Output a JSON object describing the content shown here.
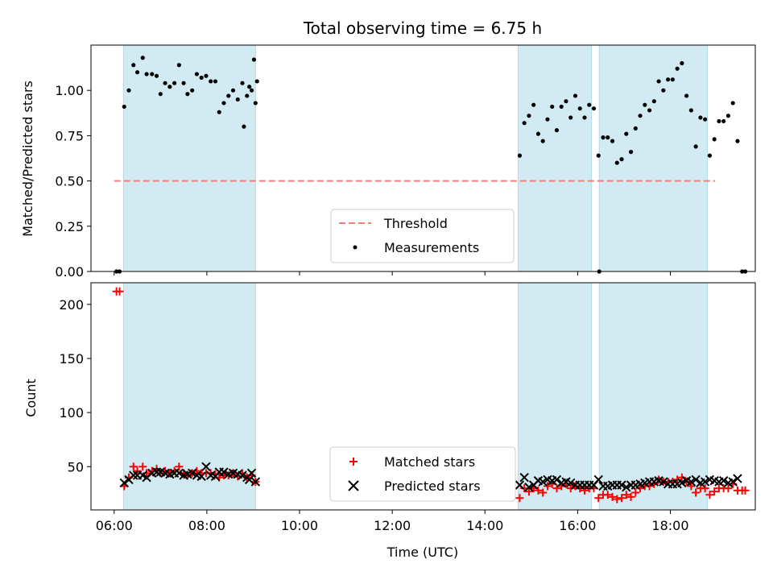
{
  "chart_data": [
    {
      "type": "scatter",
      "title": "Total observing time = 6.75 h",
      "ylabel": "Matched/Predicted stars",
      "xlabel": "",
      "xlim": [
        "05:30",
        "19:50"
      ],
      "ylim": [
        0,
        1.25
      ],
      "yticks": [
        "0.00",
        "0.25",
        "0.50",
        "0.75",
        "1.00"
      ],
      "shaded_intervals": [
        [
          "06:12",
          "09:03"
        ],
        [
          "14:43",
          "16:18"
        ],
        [
          "16:28",
          "18:48"
        ]
      ],
      "threshold": {
        "name": "Threshold",
        "value": 0.5,
        "x": [
          "06:00",
          "18:58"
        ],
        "color": "#f08080"
      },
      "series": [
        {
          "name": "Measurements",
          "color": "#000000",
          "points": [
            [
              "06:03",
              0.0
            ],
            [
              "06:07",
              0.0
            ],
            [
              "06:13",
              0.91
            ],
            [
              "06:19",
              1.0
            ],
            [
              "06:25",
              1.14
            ],
            [
              "06:30",
              1.1
            ],
            [
              "06:37",
              1.18
            ],
            [
              "06:42",
              1.09
            ],
            [
              "06:49",
              1.09
            ],
            [
              "06:55",
              1.08
            ],
            [
              "07:00",
              0.98
            ],
            [
              "07:06",
              1.04
            ],
            [
              "07:12",
              1.02
            ],
            [
              "07:18",
              1.04
            ],
            [
              "07:24",
              1.14
            ],
            [
              "07:30",
              1.04
            ],
            [
              "07:35",
              0.98
            ],
            [
              "07:41",
              1.0
            ],
            [
              "07:47",
              1.09
            ],
            [
              "07:53",
              1.07
            ],
            [
              "07:59",
              1.08
            ],
            [
              "08:05",
              1.05
            ],
            [
              "08:11",
              1.05
            ],
            [
              "08:16",
              0.88
            ],
            [
              "08:22",
              0.93
            ],
            [
              "08:28",
              0.97
            ],
            [
              "08:34",
              1.0
            ],
            [
              "08:40",
              0.95
            ],
            [
              "08:46",
              1.04
            ],
            [
              "08:52",
              0.97
            ],
            [
              "08:58",
              1.0
            ],
            [
              "09:03",
              0.93
            ],
            [
              "08:48",
              0.8
            ],
            [
              "08:55",
              1.02
            ],
            [
              "09:01",
              1.17
            ],
            [
              "09:05",
              1.05
            ],
            [
              "14:45",
              0.64
            ],
            [
              "14:51",
              0.82
            ],
            [
              "14:57",
              0.86
            ],
            [
              "15:03",
              0.92
            ],
            [
              "15:09",
              0.76
            ],
            [
              "15:15",
              0.72
            ],
            [
              "15:21",
              0.84
            ],
            [
              "15:27",
              0.91
            ],
            [
              "15:33",
              0.78
            ],
            [
              "15:39",
              0.91
            ],
            [
              "15:45",
              0.94
            ],
            [
              "15:51",
              0.85
            ],
            [
              "15:57",
              0.97
            ],
            [
              "16:03",
              0.9
            ],
            [
              "16:09",
              0.85
            ],
            [
              "16:15",
              0.92
            ],
            [
              "16:21",
              0.9
            ],
            [
              "16:27",
              0.64
            ],
            [
              "16:33",
              0.74
            ],
            [
              "16:39",
              0.74
            ],
            [
              "16:28",
              0.0
            ],
            [
              "16:45",
              0.72
            ],
            [
              "16:51",
              0.6
            ],
            [
              "16:57",
              0.62
            ],
            [
              "17:03",
              0.76
            ],
            [
              "17:09",
              0.66
            ],
            [
              "17:15",
              0.79
            ],
            [
              "17:21",
              0.86
            ],
            [
              "17:27",
              0.92
            ],
            [
              "17:33",
              0.89
            ],
            [
              "17:39",
              0.94
            ],
            [
              "17:45",
              1.05
            ],
            [
              "17:51",
              1.0
            ],
            [
              "17:57",
              1.06
            ],
            [
              "18:03",
              1.06
            ],
            [
              "18:09",
              1.12
            ],
            [
              "18:15",
              1.15
            ],
            [
              "18:21",
              0.97
            ],
            [
              "18:27",
              0.89
            ],
            [
              "18:33",
              0.69
            ],
            [
              "18:39",
              0.85
            ],
            [
              "18:45",
              0.84
            ],
            [
              "18:51",
              0.64
            ],
            [
              "18:57",
              0.73
            ],
            [
              "19:03",
              0.83
            ],
            [
              "19:09",
              0.83
            ],
            [
              "19:15",
              0.86
            ],
            [
              "19:21",
              0.93
            ],
            [
              "19:27",
              0.72
            ],
            [
              "19:33",
              0.0
            ],
            [
              "19:37",
              0.0
            ]
          ]
        }
      ],
      "legend": {
        "placement": "lower-center",
        "entries": [
          "Threshold",
          "Measurements"
        ]
      }
    },
    {
      "type": "scatter",
      "title": "",
      "ylabel": "Count",
      "xlabel": "Time (UTC)",
      "xlim": [
        "05:30",
        "19:50"
      ],
      "ylim": [
        10,
        220
      ],
      "yticks": [
        "50",
        "100",
        "150",
        "200"
      ],
      "xticks": [
        "06:00",
        "08:00",
        "10:00",
        "12:00",
        "14:00",
        "16:00",
        "18:00"
      ],
      "shaded_intervals": [
        [
          "06:12",
          "09:03"
        ],
        [
          "14:43",
          "16:18"
        ],
        [
          "16:28",
          "18:48"
        ]
      ],
      "series": [
        {
          "name": "Matched stars",
          "marker": "plus",
          "color": "#ff0000",
          "points": [
            [
              "06:03",
              212
            ],
            [
              "06:07",
              212
            ],
            [
              "06:13",
              32
            ],
            [
              "06:19",
              40
            ],
            [
              "06:25",
              50
            ],
            [
              "06:30",
              46
            ],
            [
              "06:37",
              50
            ],
            [
              "06:42",
              44
            ],
            [
              "06:49",
              46
            ],
            [
              "06:55",
              48
            ],
            [
              "07:00",
              44
            ],
            [
              "07:06",
              46
            ],
            [
              "07:12",
              44
            ],
            [
              "07:18",
              46
            ],
            [
              "07:24",
              50
            ],
            [
              "07:30",
              44
            ],
            [
              "07:35",
              42
            ],
            [
              "07:41",
              44
            ],
            [
              "07:47",
              46
            ],
            [
              "07:53",
              44
            ],
            [
              "07:59",
              44
            ],
            [
              "08:05",
              44
            ],
            [
              "08:11",
              43
            ],
            [
              "08:16",
              40
            ],
            [
              "08:22",
              42
            ],
            [
              "08:28",
              42
            ],
            [
              "08:34",
              44
            ],
            [
              "08:40",
              41
            ],
            [
              "08:46",
              44
            ],
            [
              "08:52",
              40
            ],
            [
              "08:58",
              42
            ],
            [
              "09:03",
              36
            ],
            [
              "14:45",
              21
            ],
            [
              "14:51",
              30
            ],
            [
              "14:57",
              27
            ],
            [
              "15:03",
              30
            ],
            [
              "15:09",
              28
            ],
            [
              "15:15",
              26
            ],
            [
              "15:21",
              32
            ],
            [
              "15:27",
              34
            ],
            [
              "15:33",
              30
            ],
            [
              "15:39",
              32
            ],
            [
              "15:45",
              34
            ],
            [
              "15:51",
              30
            ],
            [
              "15:57",
              32
            ],
            [
              "16:03",
              30
            ],
            [
              "16:09",
              28
            ],
            [
              "16:15",
              30
            ],
            [
              "16:21",
              30
            ],
            [
              "16:27",
              21
            ],
            [
              "16:33",
              24
            ],
            [
              "16:39",
              24
            ],
            [
              "16:45",
              22
            ],
            [
              "16:51",
              20
            ],
            [
              "16:57",
              21
            ],
            [
              "17:03",
              24
            ],
            [
              "17:09",
              22
            ],
            [
              "17:15",
              26
            ],
            [
              "17:21",
              30
            ],
            [
              "17:27",
              32
            ],
            [
              "17:33",
              32
            ],
            [
              "17:39",
              34
            ],
            [
              "17:45",
              38
            ],
            [
              "17:51",
              36
            ],
            [
              "17:57",
              36
            ],
            [
              "18:03",
              36
            ],
            [
              "18:09",
              38
            ],
            [
              "18:15",
              40
            ],
            [
              "18:21",
              36
            ],
            [
              "18:27",
              32
            ],
            [
              "18:33",
              26
            ],
            [
              "18:39",
              30
            ],
            [
              "18:45",
              30
            ],
            [
              "18:51",
              24
            ],
            [
              "18:57",
              27
            ],
            [
              "19:03",
              30
            ],
            [
              "19:09",
              30
            ],
            [
              "19:15",
              30
            ],
            [
              "19:21",
              34
            ],
            [
              "19:27",
              28
            ],
            [
              "19:33",
              28
            ],
            [
              "19:37",
              28
            ]
          ]
        },
        {
          "name": "Predicted stars",
          "marker": "x",
          "color": "#000000",
          "points": [
            [
              "06:13",
              35
            ],
            [
              "06:19",
              38
            ],
            [
              "06:25",
              42
            ],
            [
              "06:30",
              42
            ],
            [
              "06:37",
              42
            ],
            [
              "06:42",
              40
            ],
            [
              "06:49",
              44
            ],
            [
              "06:55",
              45
            ],
            [
              "07:00",
              45
            ],
            [
              "07:06",
              44
            ],
            [
              "07:12",
              43
            ],
            [
              "07:18",
              44
            ],
            [
              "07:24",
              44
            ],
            [
              "07:30",
              42
            ],
            [
              "07:35",
              43
            ],
            [
              "07:41",
              44
            ],
            [
              "07:47",
              42
            ],
            [
              "07:53",
              41
            ],
            [
              "07:59",
              50
            ],
            [
              "08:05",
              42
            ],
            [
              "08:11",
              41
            ],
            [
              "08:16",
              45
            ],
            [
              "08:22",
              45
            ],
            [
              "08:28",
              43
            ],
            [
              "08:34",
              44
            ],
            [
              "08:40",
              43
            ],
            [
              "08:46",
              42
            ],
            [
              "08:52",
              40
            ],
            [
              "08:58",
              44
            ],
            [
              "09:03",
              36
            ],
            [
              "08:55",
              38
            ],
            [
              "14:45",
              33
            ],
            [
              "14:51",
              40
            ],
            [
              "14:57",
              31
            ],
            [
              "15:03",
              33
            ],
            [
              "15:09",
              37
            ],
            [
              "15:15",
              36
            ],
            [
              "15:21",
              38
            ],
            [
              "15:27",
              37
            ],
            [
              "15:33",
              38
            ],
            [
              "15:39",
              35
            ],
            [
              "15:45",
              36
            ],
            [
              "15:51",
              35
            ],
            [
              "15:57",
              33
            ],
            [
              "16:03",
              33
            ],
            [
              "16:09",
              33
            ],
            [
              "16:15",
              33
            ],
            [
              "16:21",
              33
            ],
            [
              "16:27",
              38
            ],
            [
              "16:33",
              32
            ],
            [
              "16:39",
              32
            ],
            [
              "16:45",
              33
            ],
            [
              "16:51",
              33
            ],
            [
              "16:57",
              33
            ],
            [
              "17:03",
              31
            ],
            [
              "17:09",
              33
            ],
            [
              "17:15",
              33
            ],
            [
              "17:21",
              34
            ],
            [
              "17:27",
              35
            ],
            [
              "17:33",
              36
            ],
            [
              "17:39",
              36
            ],
            [
              "17:45",
              37
            ],
            [
              "17:51",
              36
            ],
            [
              "17:57",
              34
            ],
            [
              "18:03",
              34
            ],
            [
              "18:09",
              34
            ],
            [
              "18:15",
              35
            ],
            [
              "18:21",
              37
            ],
            [
              "18:27",
              36
            ],
            [
              "18:33",
              38
            ],
            [
              "18:39",
              35
            ],
            [
              "18:45",
              36
            ],
            [
              "18:51",
              38
            ],
            [
              "18:57",
              37
            ],
            [
              "19:03",
              36
            ],
            [
              "19:09",
              37
            ],
            [
              "19:15",
              35
            ],
            [
              "19:21",
              36
            ],
            [
              "19:27",
              39
            ]
          ]
        }
      ],
      "legend": {
        "placement": "lower-center",
        "entries": [
          "Matched stars",
          "Predicted stars"
        ]
      }
    }
  ],
  "colors": {
    "shade": "#add8e6",
    "threshold": "#f08080",
    "matched": "#ff0000",
    "predicted": "#000000",
    "measurements": "#000000"
  }
}
